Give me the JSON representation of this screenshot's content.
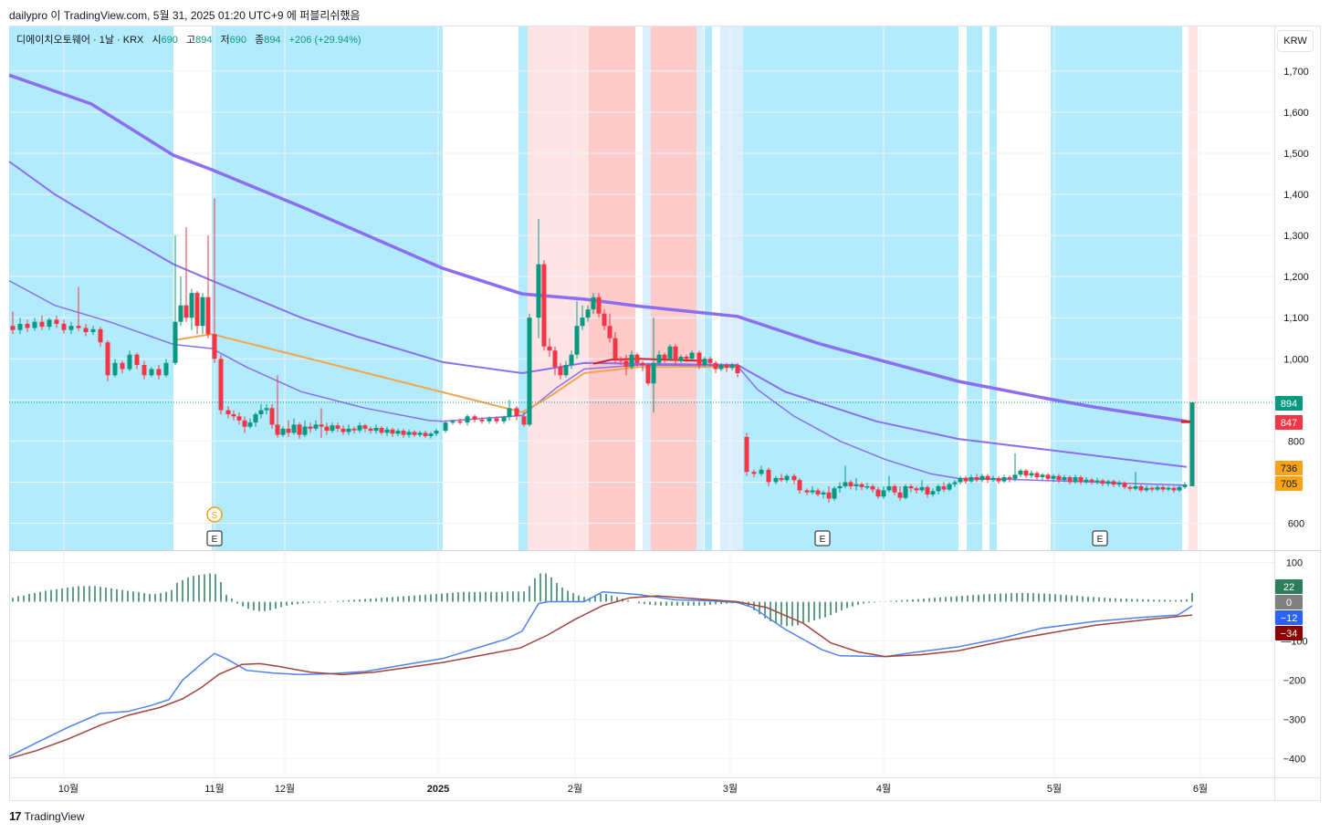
{
  "header": {
    "published": "dailypro 이 TradingView.com, 5월 31, 2025 01:20 UTC+9 에 퍼블리쉬했음"
  },
  "legend": {
    "symbol": "디에이치오토웨어 · 1날 · KRX",
    "open_label": "시",
    "open": "690",
    "high_label": "고",
    "high": "894",
    "low_label": "저",
    "low": "690",
    "close_label": "종",
    "close": "894",
    "change": "+206 (+29.94%)"
  },
  "currency": "KRW",
  "footer": {
    "brand": "TradingView",
    "logo_mark": "17"
  },
  "colors": {
    "up": "#089981",
    "down": "#f23645",
    "band_blue": "#b2ebfb",
    "band_pink": "#ffe4e6",
    "band_red": "#fecaca",
    "band_lightblue": "#dbeefc",
    "ma_purple": "#8c6ff0",
    "ma_orange": "#f5a54f",
    "macd_blue": "#4f83f0",
    "signal_red": "#a3433e",
    "hist": "#2e7d5b"
  },
  "chart_data": [
    {
      "type": "candlestick",
      "title": "디에이치오토웨어 · 1날 · KRX",
      "price_axis_ticks": [
        600,
        700,
        800,
        900,
        1000,
        1100,
        1200,
        1300,
        1400,
        1500,
        1600,
        1700
      ],
      "price_axis_labels": [
        "600",
        "",
        "800",
        "",
        "1,000",
        "1,100",
        "1,200",
        "1,300",
        "1,400",
        "1,500",
        "1,600",
        "1,700"
      ],
      "ylim": [
        540,
        1760
      ],
      "time_axis_labels": [
        "10월",
        "11월",
        "12월",
        "2025",
        "2월",
        "3월",
        "4월",
        "5월",
        "6월"
      ],
      "price_tags": [
        {
          "value": 894,
          "label": "894",
          "color": "#089981"
        },
        {
          "value": 847,
          "label": "847",
          "color": "#f23645"
        },
        {
          "value": 736,
          "label": "736",
          "color": "#f6a316"
        },
        {
          "value": 705,
          "label": "705",
          "color": "#f6a316"
        }
      ],
      "last_price_line": 894,
      "event_markers": [
        {
          "type": "dividend",
          "label": "S",
          "date": "11월"
        },
        {
          "type": "earnings",
          "label": "E",
          "date": "11월"
        },
        {
          "type": "earnings",
          "label": "E",
          "date": "3월"
        },
        {
          "type": "earnings",
          "label": "E",
          "date": "5월"
        }
      ],
      "band_segments": [
        {
          "range": "9월말~10월말",
          "color": "band_blue"
        },
        {
          "range": "11월~1월",
          "color": "band_blue"
        },
        {
          "range": "1월말",
          "color": "band_blue"
        },
        {
          "range": "1월말~2월",
          "color": "band_pink"
        },
        {
          "range": "2월",
          "color": "band_red"
        },
        {
          "range": "2월말",
          "color": "band_red"
        },
        {
          "range": "3월~4월",
          "color": "band_blue"
        },
        {
          "range": "5월",
          "color": "band_blue"
        },
        {
          "range": "5월말",
          "color": "band_pink"
        }
      ],
      "moving_averages": [
        {
          "name": "",
          "color": "ma_purple",
          "start": 1690,
          "end": 847
        },
        {
          "name": "",
          "color": "ma_purple",
          "start": 1480,
          "end": 736
        },
        {
          "name": "",
          "color": "ma_purple",
          "start": 1190,
          "end": 705
        },
        {
          "name": "",
          "color": "ma_orange"
        }
      ]
    },
    {
      "type": "macd",
      "axis_ticks": [
        100,
        -100,
        -200,
        -300,
        -400
      ],
      "axis_labels": [
        "100",
        "—100",
        "−200",
        "−300",
        "−400"
      ],
      "ylim": [
        -455,
        135
      ],
      "value_tags": [
        {
          "value": 22,
          "label": "22",
          "color": "#2e7d5b"
        },
        {
          "value": 0,
          "label": "0",
          "color": "#808080"
        },
        {
          "value": -12,
          "label": "−12",
          "color": "#2962ff"
        },
        {
          "value": -34,
          "label": "−34",
          "color": "#8b0000"
        }
      ],
      "macd_series_start": -395,
      "signal_series_start": -400
    }
  ]
}
